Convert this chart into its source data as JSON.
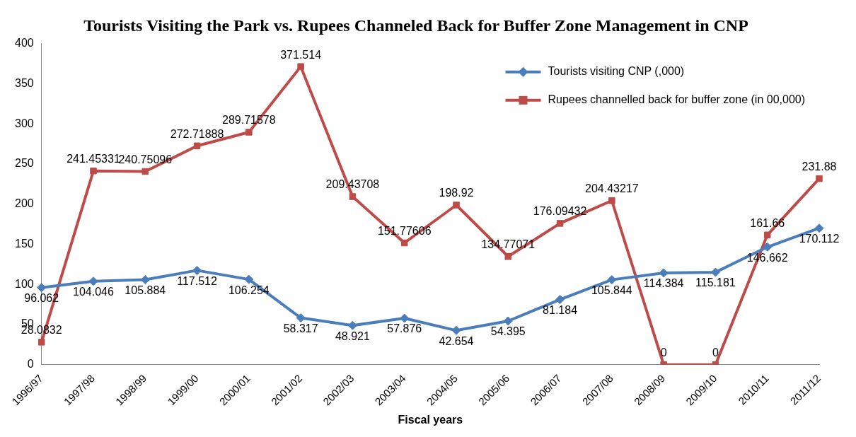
{
  "chart_data": {
    "type": "line",
    "title": "Tourists Visiting the Park vs. Rupees Channeled Back for Buffer Zone Management in CNP",
    "xlabel": "Fiscal years",
    "categories": [
      "1996/97",
      "1997/98",
      "1998/99",
      "1999/00",
      "2000/01",
      "2001/02",
      "2002/03",
      "2003/04",
      "2004/05",
      "2005/06",
      "2006/07",
      "2007/08",
      "2008/09",
      "2009/10",
      "2010/11",
      "2011/12"
    ],
    "series": [
      {
        "name": "Tourists visiting CNP (,000)",
        "color": "#4a7ebb",
        "marker": "diamond",
        "values": [
          96.062,
          104.046,
          105.884,
          117.512,
          106.254,
          58.317,
          48.921,
          57.876,
          42.654,
          54.395,
          81.184,
          105.844,
          114.384,
          115.181,
          146.662,
          170.112
        ]
      },
      {
        "name": "Rupees channelled back for buffer zone (in 00,000)",
        "color": "#be4b48",
        "marker": "square",
        "values": [
          28.0832,
          241.45331,
          240.75096,
          272.71888,
          289.71578,
          371.514,
          209.43708,
          151.77606,
          198.92,
          134.77071,
          176.09432,
          204.43217,
          0,
          0,
          161.66,
          231.88
        ]
      }
    ],
    "ylim": [
      0,
      400
    ],
    "yticks": [
      0,
      50,
      100,
      150,
      200,
      250,
      300,
      350,
      400
    ],
    "grid": false,
    "legend": "top right",
    "data_labels": true,
    "line_style": "solid"
  }
}
